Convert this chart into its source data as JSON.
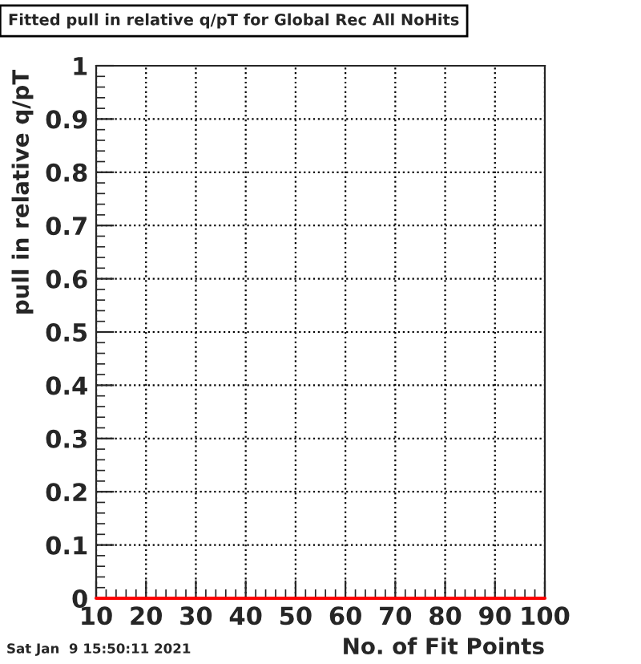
{
  "chart_data": {
    "type": "line",
    "title": "Fitted pull in relative q/pT for Global Rec All NoHits",
    "xlabel": "No. of Fit Points",
    "ylabel": "pull in relative q/pT",
    "x": [
      10,
      100
    ],
    "values": [
      0,
      0
    ],
    "color": "#ff0000",
    "xlim": [
      10,
      100
    ],
    "xticks": [
      10,
      20,
      30,
      40,
      50,
      60,
      70,
      80,
      90,
      100
    ],
    "ylim": [
      0,
      1
    ],
    "yticks": [
      0,
      0.1,
      0.2,
      0.3,
      0.4,
      0.5,
      0.6,
      0.7,
      0.8,
      0.9,
      1
    ],
    "grid": true,
    "annotations": [
      "Sat Jan  9 15:50:11 2021"
    ]
  }
}
